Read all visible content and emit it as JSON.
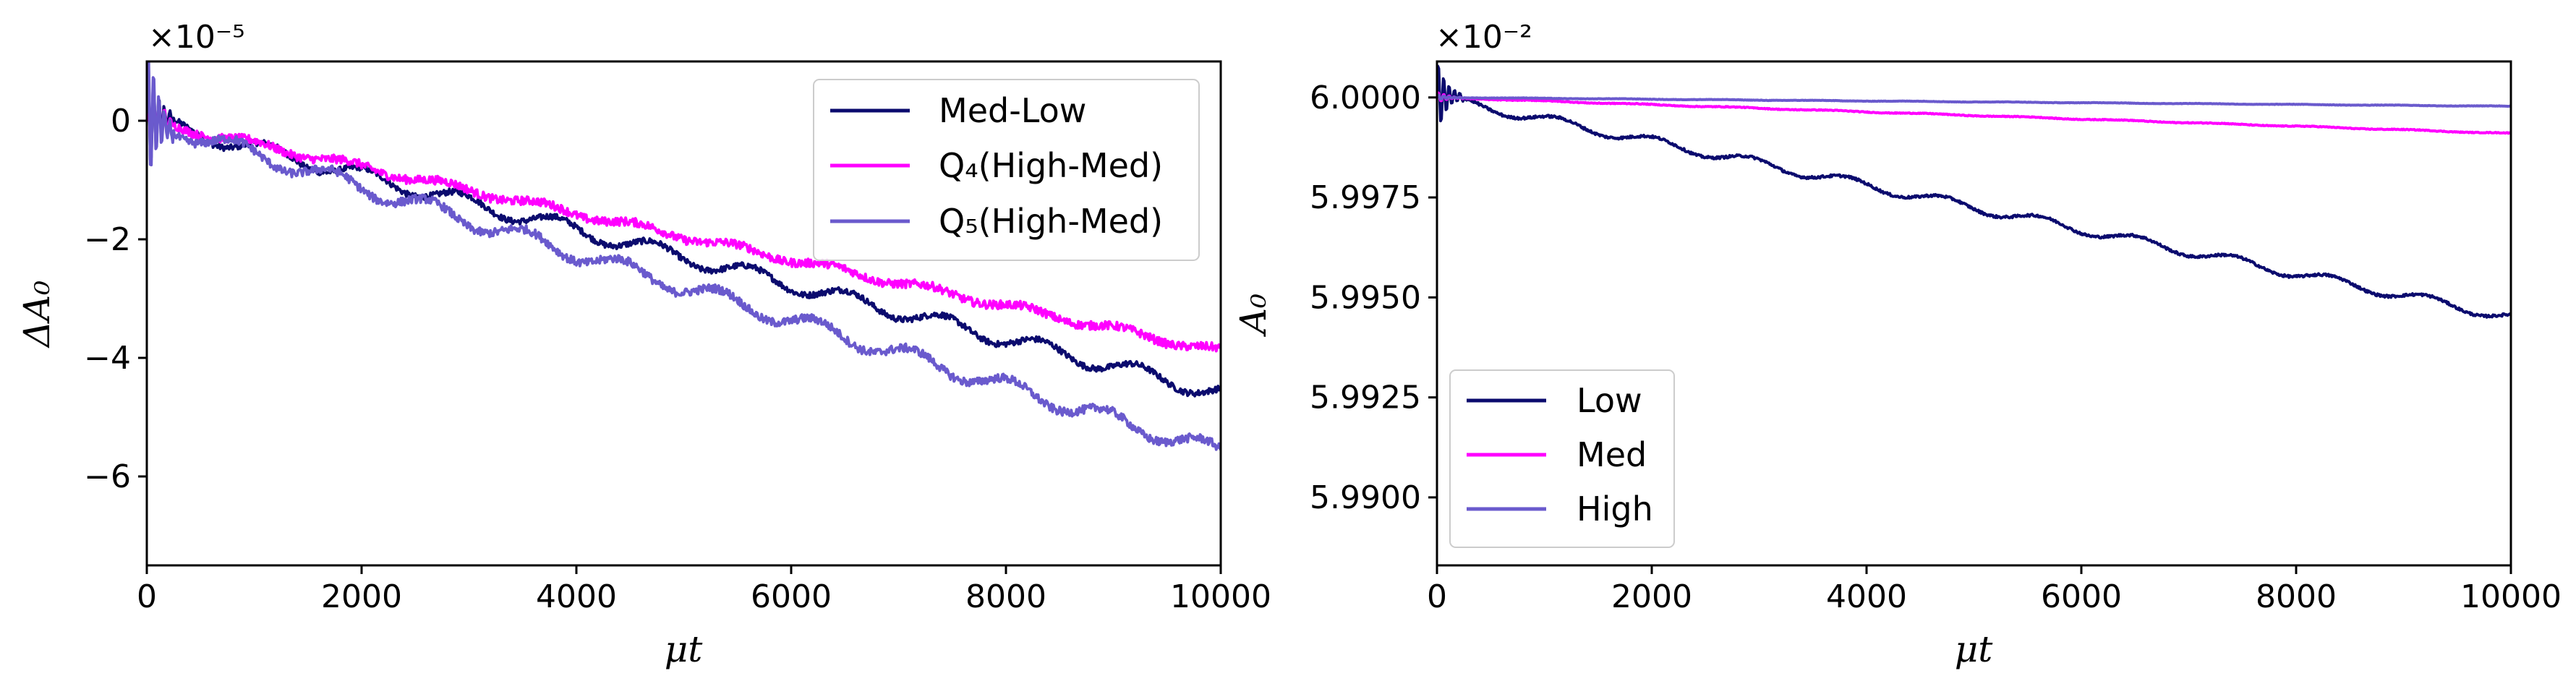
{
  "chart_data": [
    {
      "type": "line",
      "id": "left",
      "xlabel": "μt",
      "ylabel": "ΔA₀",
      "offset_text": "×10⁻⁵",
      "xlim": [
        0,
        10000
      ],
      "ylim": [
        -7.5,
        1.0
      ],
      "x_ticks": [
        0,
        2000,
        4000,
        6000,
        8000,
        10000
      ],
      "x_tick_labels": [
        "0",
        "2000",
        "4000",
        "6000",
        "8000",
        "10000"
      ],
      "y_ticks": [
        0,
        -2,
        -4,
        -6
      ],
      "y_tick_labels": [
        "0",
        "−2",
        "−4",
        "−6"
      ],
      "legend_position": "top-right",
      "series": [
        {
          "name": "Med-Low",
          "color": "#0b0b6e",
          "slope_per_10k": -4.6,
          "wiggle": 0.13,
          "noise": 0.05
        },
        {
          "name": "Q₄(High-Med)",
          "color": "#ff00ff",
          "slope_per_10k": -3.9,
          "wiggle": 0.06,
          "noise": 0.07
        },
        {
          "name": "Q₅(High-Med)",
          "color": "#6a5acd",
          "slope_per_10k": -5.6,
          "wiggle": 0.14,
          "noise": 0.07
        }
      ]
    },
    {
      "type": "line",
      "id": "right",
      "xlabel": "μt",
      "ylabel": "A₀",
      "offset_text": "×10⁻²",
      "xlim": [
        0,
        10000
      ],
      "ylim": [
        5.9883,
        6.0009
      ],
      "x_ticks": [
        0,
        2000,
        4000,
        6000,
        8000,
        10000
      ],
      "x_tick_labels": [
        "0",
        "2000",
        "4000",
        "6000",
        "8000",
        "10000"
      ],
      "y_ticks": [
        6.0,
        5.9975,
        5.995,
        5.9925,
        5.99
      ],
      "y_tick_labels": [
        "6.0000",
        "5.9975",
        "5.9950",
        "5.9925",
        "5.9900"
      ],
      "legend_position": "bottom-left",
      "series": [
        {
          "name": "Low",
          "color": "#0b0b6e",
          "start": 6.0,
          "slope_per_10k": -0.0055,
          "wiggle": 0.00012,
          "noise": 3e-05
        },
        {
          "name": "Med",
          "color": "#ff00ff",
          "start": 6.0,
          "slope_per_10k": -0.0009,
          "wiggle": 1e-05,
          "noise": 1e-05
        },
        {
          "name": "High",
          "color": "#6a5acd",
          "start": 6.0,
          "slope_per_10k": -0.00022,
          "wiggle": 5e-06,
          "noise": 5e-06
        }
      ]
    }
  ]
}
